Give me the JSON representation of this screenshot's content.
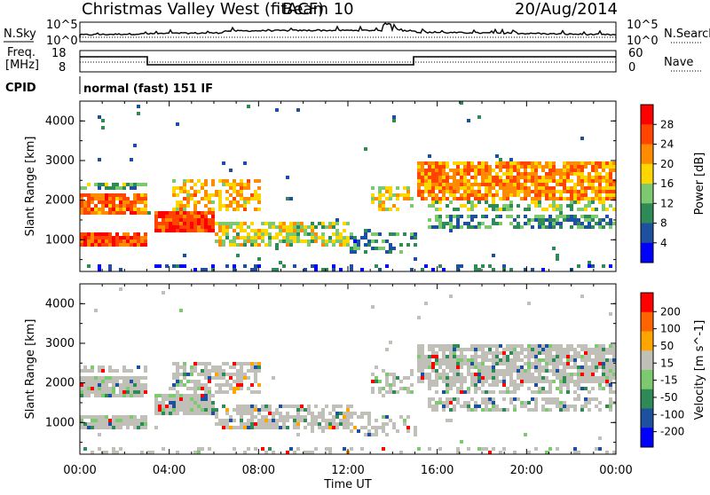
{
  "header": {
    "station": "Christmas Valley West (fitACF)",
    "beam": "Beam 10",
    "date": "20/Aug/2014"
  },
  "panels": {
    "nsky": {
      "label": "N.Sky",
      "tick_top": "10^5",
      "tick_bottom": "10^0",
      "right_tick_top": "10^5",
      "right_tick_bottom": "10^0",
      "right_label": "N.Search"
    },
    "freq": {
      "label_line1": "Freq.",
      "label_line2": "[MHz]",
      "tick_top": "18",
      "tick_bottom": "8",
      "right_tick_top": "60",
      "right_tick_bottom": "0",
      "right_label": "Nave"
    },
    "cpid": {
      "label": "CPID",
      "text": "normal (fast) 151 IF"
    }
  },
  "chart_data": [
    {
      "type": "heatmap",
      "title": "Power",
      "ylabel": "Slant Range [km]",
      "y_ticks": [
        "1000",
        "2000",
        "3000",
        "4000"
      ],
      "ylim": [
        200,
        4500
      ],
      "colorbar_label": "Power [dB]",
      "colorbar_ticks": [
        "28",
        "24",
        "20",
        "16",
        "12",
        "8",
        "4"
      ],
      "colorbar_range": [
        0,
        32
      ],
      "colors": [
        "#0000ff",
        "#1e50a0",
        "#2e8b57",
        "#7cc96f",
        "#ffd700",
        "#ff8c00",
        "#ff4500",
        "#ff0000"
      ]
    },
    {
      "type": "heatmap",
      "title": "Velocity",
      "ylabel": "Slant Range [km]",
      "y_ticks": [
        "1000",
        "2000",
        "3000",
        "4000"
      ],
      "ylim": [
        200,
        4500
      ],
      "xlabel": "Time UT",
      "x_ticks": [
        "00:00",
        "04:00",
        "08:00",
        "12:00",
        "16:00",
        "20:00",
        "00:00"
      ],
      "colorbar_label": "Velocity [m s^-1]",
      "colorbar_ticks": [
        "200",
        "100",
        "50",
        "15",
        "-15",
        "-50",
        "-100",
        "-200"
      ],
      "colorbar_range": [
        -250,
        250
      ],
      "colors": [
        "#0000ff",
        "#1e50a0",
        "#2e8b57",
        "#7cc96f",
        "#c0c0b8",
        "#ffa500",
        "#ff6400",
        "#ff0000"
      ]
    }
  ]
}
